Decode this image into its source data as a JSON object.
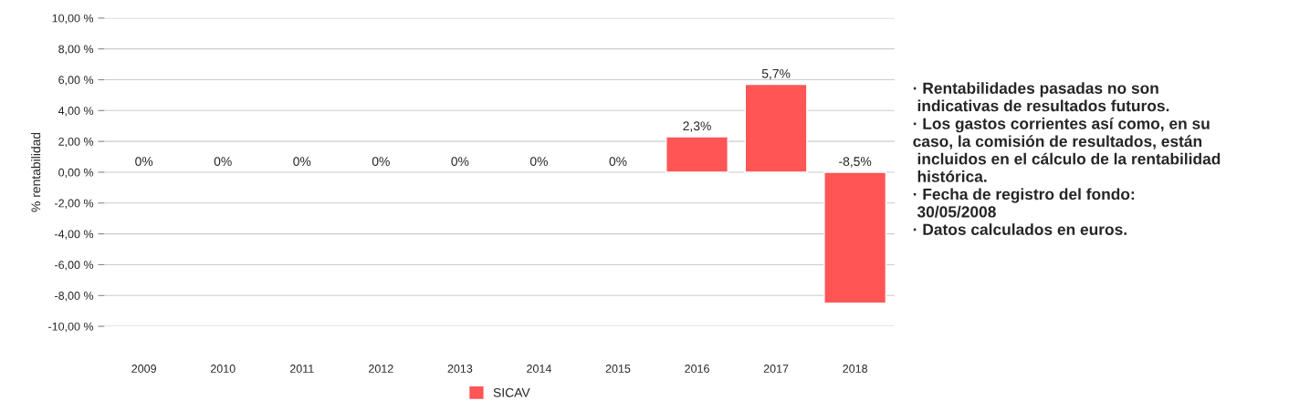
{
  "chart_data": {
    "type": "bar",
    "categories": [
      "2009",
      "2010",
      "2011",
      "2012",
      "2013",
      "2014",
      "2015",
      "2016",
      "2017",
      "2018"
    ],
    "series": [
      {
        "name": "SICAV",
        "color": "#ff5555",
        "values": [
          0,
          0,
          0,
          0,
          0,
          0,
          0,
          2.3,
          5.7,
          -8.5
        ],
        "value_labels": [
          "0%",
          "0%",
          "0%",
          "0%",
          "0%",
          "0%",
          "0%",
          "2,3%",
          "5,7%",
          "-8,5%"
        ]
      }
    ],
    "ylabel": "% rentabilidad",
    "ylim": [
      -10,
      10
    ],
    "yticks": [
      {
        "value": -10,
        "label": "-10,00 %"
      },
      {
        "value": -8,
        "label": "-8,00 %"
      },
      {
        "value": -6,
        "label": "-6,00 %"
      },
      {
        "value": -4,
        "label": "-4,00 %"
      },
      {
        "value": -2,
        "label": "-2,00 %"
      },
      {
        "value": 0,
        "label": "0,00 %"
      },
      {
        "value": 2,
        "label": "2,00 %"
      },
      {
        "value": 4,
        "label": "4,00 %"
      },
      {
        "value": 6,
        "label": "6,00 %"
      },
      {
        "value": 8,
        "label": "8,00 %"
      },
      {
        "value": 10,
        "label": "10,00 %"
      }
    ],
    "grid": "y",
    "legend": "bottom",
    "annotations": [
      "· Rentabilidades pasadas no son\n indicativas de resultados futuros.\n· Los gastos corrientes así como, en su\ncaso, la comisión de resultados, están\n incluidos en el cálculo de la rentabilidad\n histórica.\n· Fecha de registro del fondo:\n 30/05/2008\n· Datos calculados en euros."
    ]
  }
}
